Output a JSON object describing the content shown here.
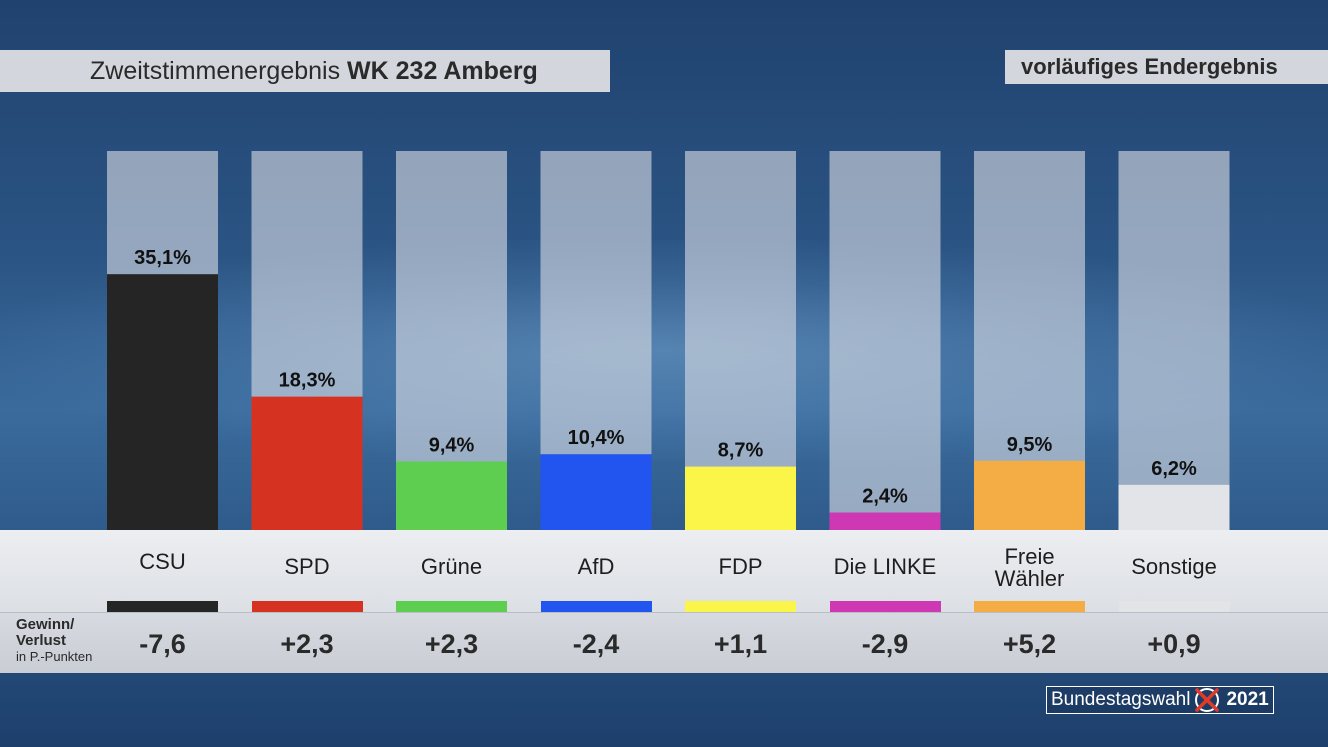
{
  "header": {
    "title_prefix": "Zweitstimmenergebnis",
    "title_bold": "WK 232 Amberg",
    "status": "vorläufiges Endergebnis"
  },
  "gain_loss": {
    "label_line1": "Gewinn/",
    "label_line2": "Verlust",
    "label_line3": "in P.-Punkten"
  },
  "logo": {
    "text": "Bundestagswahl",
    "year": "2021",
    "icon": "ballot-cross-icon"
  },
  "colors": {
    "CSU": "#252525",
    "SPD": "#d63222",
    "Grüne": "#5ece50",
    "AfD": "#2254f0",
    "FDP": "#fbf54a",
    "Die LINKE": "#cf38b3",
    "Freie Wähler": "#f3ad44",
    "Sonstige": "#e2e4e7"
  },
  "chart_data": {
    "type": "bar",
    "categories": [
      "CSU",
      "SPD",
      "Grüne",
      "AfD",
      "FDP",
      "Die LINKE",
      "Freie Wähler",
      "Sonstige"
    ],
    "values": [
      35.1,
      18.3,
      9.4,
      10.4,
      8.7,
      2.4,
      9.5,
      6.2
    ],
    "value_labels": [
      "35,1%",
      "18,3%",
      "9,4%",
      "10,4%",
      "8,7%",
      "2,4%",
      "9,5%",
      "6,2%"
    ],
    "category_labels": [
      [
        "CSU"
      ],
      [
        "SPD"
      ],
      [
        "Grüne"
      ],
      [
        "AfD"
      ],
      [
        "FDP"
      ],
      [
        "Die LINKE"
      ],
      [
        "Freie",
        "Wähler"
      ],
      [
        "Sonstige"
      ]
    ],
    "gain_loss": [
      -7.6,
      2.3,
      2.3,
      -2.4,
      1.1,
      -2.9,
      5.2,
      0.9
    ],
    "gain_loss_labels": [
      "-7,6",
      "+2,3",
      "+2,3",
      "-2,4",
      "+1,1",
      "-2,9",
      "+5,2",
      "+0,9"
    ],
    "ylim": [
      0,
      100
    ],
    "title": "Zweitstimmenergebnis WK 232 Amberg",
    "xlabel": "",
    "ylabel": "",
    "grid": false,
    "legend": "none"
  }
}
